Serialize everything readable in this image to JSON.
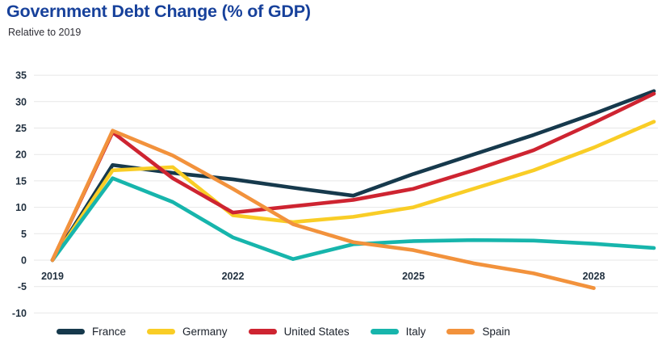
{
  "header": {
    "title": "Government Debt Change (% of GDP)",
    "subtitle": "Relative to 2019"
  },
  "colors": {
    "title": "#17419B",
    "subtitle": "#2E2E36",
    "axis_text": "#223140",
    "gridline": "#E7E7E7",
    "legend_text": "#1A202A",
    "background": "#FFFFFF"
  },
  "chart_data": {
    "type": "line",
    "title": "Government Debt Change (% of GDP)",
    "subtitle": "Relative to 2019",
    "xlabel": "",
    "ylabel": "",
    "x": [
      2019,
      2020,
      2021,
      2022,
      2023,
      2024,
      2025,
      2026,
      2027,
      2028,
      2029
    ],
    "x_tick_labels": [
      "2019",
      "2022",
      "2025",
      "2028"
    ],
    "x_tick_years": [
      2019,
      2022,
      2025,
      2028
    ],
    "ylim": [
      -10,
      35
    ],
    "y_ticks": [
      35,
      30,
      25,
      20,
      15,
      10,
      5,
      0,
      -5,
      -10
    ],
    "grid": "horizontal-only",
    "legend_position": "bottom",
    "line_width": 4.6,
    "series": [
      {
        "name": "France",
        "color": "#16394C",
        "values": [
          0,
          18,
          16.5,
          15.3,
          13.7,
          12.2,
          16.3,
          20,
          23.7,
          27.7,
          32
        ]
      },
      {
        "name": "Germany",
        "color": "#F9CD26",
        "values": [
          0,
          17,
          17.6,
          8.5,
          7.2,
          8.2,
          10,
          13.5,
          17,
          21.3,
          26.2
        ]
      },
      {
        "name": "United States",
        "color": "#CE2431",
        "values": [
          0,
          24.2,
          15.5,
          9,
          10.2,
          11.4,
          13.5,
          17,
          20.8,
          26,
          31.5
        ]
      },
      {
        "name": "Italy",
        "color": "#17B5AC",
        "values": [
          0,
          15.5,
          11,
          4.3,
          0.2,
          3,
          3.6,
          3.8,
          3.7,
          3.1,
          2.3
        ]
      },
      {
        "name": "Spain",
        "color": "#F2923C",
        "values": [
          0,
          24.5,
          19.8,
          13.5,
          6.8,
          3.4,
          1.9,
          -0.6,
          -2.5,
          -5.3,
          null
        ]
      }
    ]
  }
}
